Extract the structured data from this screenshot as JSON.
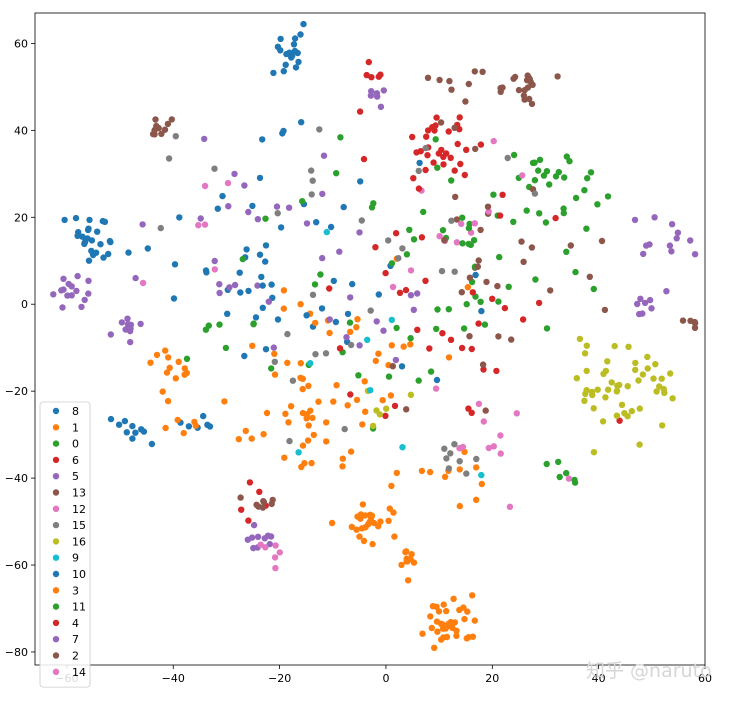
{
  "chart_data": {
    "type": "scatter",
    "title": "",
    "xlabel": "",
    "ylabel": "",
    "xlim": [
      -66,
      60
    ],
    "ylim": [
      -83,
      67
    ],
    "x_ticks": [
      -60,
      -40,
      -20,
      0,
      20,
      40,
      60
    ],
    "y_ticks": [
      60,
      40,
      20,
      0,
      -20,
      -40,
      -60,
      -80
    ],
    "grid": false,
    "legend_position": "lower-left",
    "series": [
      {
        "name": "8",
        "color": "#1f77b4",
        "clusters": [
          [
            -18,
            57,
            2.5,
            18
          ],
          [
            -55,
            15,
            3,
            25
          ],
          [
            -20,
            38,
            2,
            4
          ],
          [
            -10,
            8,
            12,
            25
          ],
          [
            -48,
            -29,
            2,
            10
          ],
          [
            -30,
            5,
            8,
            10
          ]
        ]
      },
      {
        "name": "1",
        "color": "#ff7f0e",
        "clusters": [
          [
            -15,
            -28,
            6,
            35
          ],
          [
            -2,
            -50,
            2.5,
            25
          ],
          [
            12,
            -73,
            3,
            35
          ],
          [
            -5,
            -8,
            10,
            30
          ],
          [
            8,
            -40,
            5,
            12
          ]
        ]
      },
      {
        "name": "0",
        "color": "#2ca02c",
        "clusters": [
          [
            30,
            27,
            5,
            30
          ],
          [
            10,
            0,
            12,
            25
          ],
          [
            -10,
            20,
            10,
            10
          ]
        ]
      },
      {
        "name": "6",
        "color": "#d62728",
        "clusters": [
          [
            10,
            36,
            3.5,
            30
          ],
          [
            -2,
            53,
            1,
            5
          ],
          [
            5,
            -10,
            15,
            20
          ]
        ]
      },
      {
        "name": "5",
        "color": "#9467bd",
        "clusters": [
          [
            -10,
            5,
            15,
            25
          ],
          [
            50,
            15,
            3,
            12
          ],
          [
            -48,
            -5,
            1.5,
            10
          ],
          [
            -30,
            25,
            8,
            10
          ]
        ]
      },
      {
        "name": "13",
        "color": "#8c564b",
        "clusters": [
          [
            25,
            50,
            2.5,
            20
          ],
          [
            -43,
            40,
            1.5,
            10
          ],
          [
            58,
            -4,
            1,
            5
          ],
          [
            20,
            12,
            8,
            15
          ]
        ]
      },
      {
        "name": "12",
        "color": "#e377c2",
        "clusters": [
          [
            10,
            20,
            12,
            12
          ],
          [
            15,
            -33,
            6,
            6
          ]
        ]
      },
      {
        "name": "15",
        "color": "#7f7f7f",
        "clusters": [
          [
            0,
            5,
            15,
            20
          ],
          [
            12,
            -36,
            2,
            8
          ],
          [
            -20,
            30,
            10,
            10
          ]
        ]
      },
      {
        "name": "16",
        "color": "#bcbd22",
        "clusters": [
          [
            45,
            -19,
            5,
            50
          ],
          [
            0,
            -23,
            3,
            6
          ]
        ]
      },
      {
        "name": "9",
        "color": "#17becf",
        "clusters": [
          [
            0,
            -15,
            15,
            8
          ]
        ]
      },
      {
        "name": "10",
        "color": "#1f77b4",
        "clusters": [
          [
            -25,
            5,
            10,
            15
          ],
          [
            -34,
            -28,
            2,
            6
          ]
        ]
      },
      {
        "name": "3",
        "color": "#ff7f0e",
        "clusters": [
          [
            -40,
            -15,
            2,
            12
          ],
          [
            3,
            -60,
            1.5,
            10
          ],
          [
            -38,
            -28,
            2,
            6
          ]
        ]
      },
      {
        "name": "11",
        "color": "#2ca02c",
        "clusters": [
          [
            15,
            10,
            10,
            20
          ],
          [
            -30,
            -10,
            4,
            8
          ],
          [
            32,
            -40,
            2,
            6
          ]
        ]
      },
      {
        "name": "4",
        "color": "#d62728",
        "clusters": [
          [
            10,
            5,
            15,
            15
          ],
          [
            -25,
            -45,
            2,
            5
          ]
        ]
      },
      {
        "name": "7",
        "color": "#9467bd",
        "clusters": [
          [
            -60,
            3,
            2,
            15
          ],
          [
            -2,
            48,
            1,
            6
          ],
          [
            50,
            0,
            2,
            8
          ],
          [
            -25,
            -55,
            2,
            10
          ]
        ]
      },
      {
        "name": "2",
        "color": "#8c564b",
        "clusters": [
          [
            15,
            50,
            5,
            10
          ],
          [
            -23,
            -45,
            2,
            8
          ],
          [
            20,
            0,
            10,
            15
          ]
        ]
      },
      {
        "name": "14",
        "color": "#e377c2",
        "clusters": [
          [
            -20,
            -58,
            2,
            6
          ],
          [
            25,
            -30,
            5,
            6
          ],
          [
            -40,
            18,
            8,
            6
          ]
        ]
      }
    ]
  },
  "watermark": {
    "text": "知乎 @naruto"
  }
}
